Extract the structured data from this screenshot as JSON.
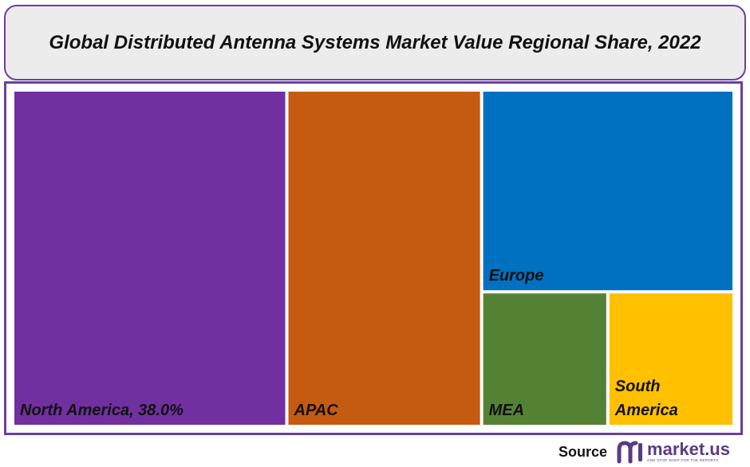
{
  "title": "Global Distributed Antenna Systems Market Value Regional Share, 2022",
  "chart_data": {
    "type": "treemap",
    "title": "Global Distributed Antenna Systems Market Value Regional Share, 2022",
    "unit": "%",
    "items": [
      {
        "label": "North America, 38.0%",
        "name": "North America",
        "value": 38.0,
        "color": "#7030a0"
      },
      {
        "label": "APAC",
        "name": "APAC",
        "value": 27.0,
        "color": "#c55a11"
      },
      {
        "label": "Europe",
        "name": "Europe",
        "value": 21.0,
        "color": "#0070c0"
      },
      {
        "label": "MEA",
        "name": "MEA",
        "value": 7.0,
        "color": "#548235"
      },
      {
        "label": "South America",
        "label_lines": [
          "South",
          "America"
        ],
        "name": "South America",
        "value": 7.0,
        "color": "#ffc000"
      }
    ]
  },
  "source": {
    "label": "Source",
    "logo_text": "market.us",
    "logo_tagline": "ONE STOP SHOP FOR THE REPORTS",
    "logo_color": "#5a3a86"
  }
}
